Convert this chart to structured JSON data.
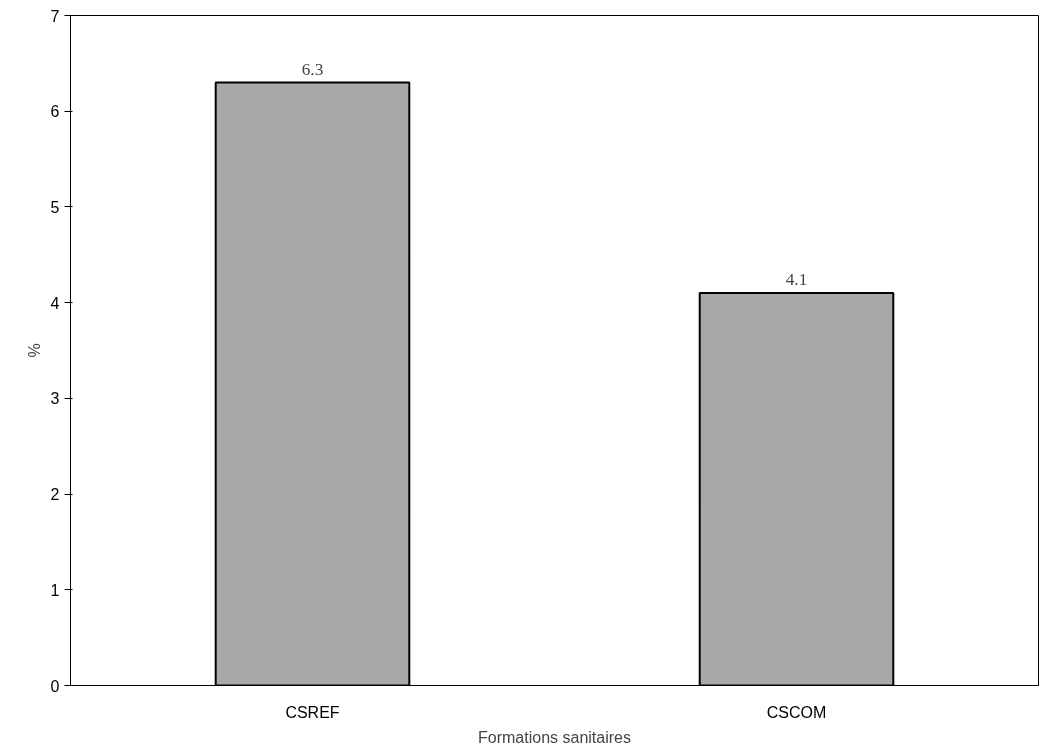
{
  "chart_data": {
    "type": "bar",
    "xlabel": "Formations sanitaires",
    "ylabel": "%",
    "categories": [
      "CSREF",
      "CSCOM"
    ],
    "values": [
      6.3,
      4.1
    ],
    "color": "#a8a8a8",
    "ylim": [
      0,
      7
    ],
    "yticks": [
      0,
      1,
      2,
      3,
      4,
      5,
      6,
      7
    ],
    "data_labels": true,
    "grid": false
  }
}
